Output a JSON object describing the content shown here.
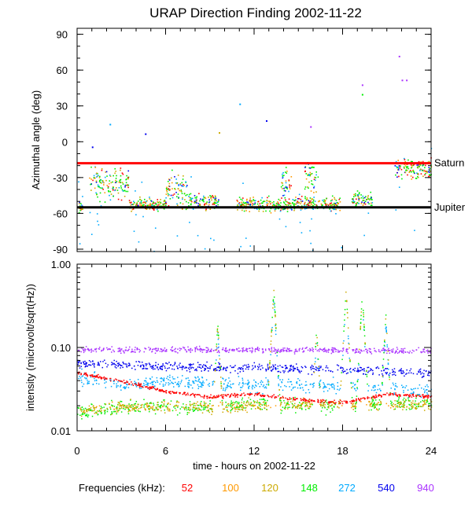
{
  "chart_data": {
    "type": "scatter",
    "title": "URAP Direction Finding  2002-11-22",
    "xlabel": "time - hours on 2002-11-22",
    "xlim": [
      0,
      24
    ],
    "x_ticks": [
      "0",
      "6",
      "12",
      "18",
      "24"
    ],
    "legend": {
      "label": "Frequencies (kHz):",
      "items": [
        {
          "name": "52",
          "color": "#ff0000"
        },
        {
          "name": "100",
          "color": "#ff9900"
        },
        {
          "name": "120",
          "color": "#ccaa00"
        },
        {
          "name": "148",
          "color": "#00ee00"
        },
        {
          "name": "272",
          "color": "#00aaff"
        },
        {
          "name": "540",
          "color": "#0000ee"
        },
        {
          "name": "940",
          "color": "#aa33ff"
        }
      ]
    },
    "panels": [
      {
        "id": "azimuth",
        "ylabel": "Azimuthal angle (deg)",
        "ylim": [
          -92,
          95
        ],
        "y_ticks": [
          "90",
          "60",
          "30",
          "0",
          "-30",
          "-60",
          "-90"
        ],
        "reference_lines": [
          {
            "label": "Saturn",
            "value": -18,
            "color": "#ff0000"
          },
          {
            "label": "Jupiter",
            "value": -55,
            "color": "#000000"
          }
        ],
        "activity_windows": [
          {
            "start": 0.0,
            "end": 0.4,
            "center": -55,
            "spread": 6
          },
          {
            "start": 0.8,
            "end": 3.5,
            "center": -35,
            "spread": 14
          },
          {
            "start": 3.5,
            "end": 6.0,
            "center": -52,
            "spread": 5
          },
          {
            "start": 6.0,
            "end": 7.5,
            "center": -40,
            "spread": 16
          },
          {
            "start": 7.5,
            "end": 9.6,
            "center": -50,
            "spread": 7
          },
          {
            "start": 10.8,
            "end": 17.8,
            "center": -52,
            "spread": 6
          },
          {
            "start": 13.8,
            "end": 14.5,
            "center": -35,
            "spread": 12
          },
          {
            "start": 15.4,
            "end": 16.3,
            "center": -30,
            "spread": 16
          },
          {
            "start": 18.6,
            "end": 20.0,
            "center": -48,
            "spread": 7
          },
          {
            "start": 21.5,
            "end": 24.0,
            "center": -22,
            "spread": 8
          }
        ]
      },
      {
        "id": "intensity",
        "ylabel": "intensity (microvolt/sqrt(Hz))",
        "yscale": "log",
        "ylim": [
          0.01,
          1.0
        ],
        "y_ticks": [
          "1.00",
          "0.10",
          "0.01"
        ],
        "series_baselines": [
          {
            "name": "940",
            "points": [
              [
                0,
                0.095
              ],
              [
                12,
                0.095
              ],
              [
                24,
                0.092
              ]
            ]
          },
          {
            "name": "540",
            "points": [
              [
                0,
                0.065
              ],
              [
                6,
                0.06
              ],
              [
                12,
                0.057
              ],
              [
                18,
                0.056
              ],
              [
                24,
                0.05
              ]
            ]
          },
          {
            "name": "272",
            "points": [
              [
                0,
                0.045
              ],
              [
                3,
                0.035
              ],
              [
                6,
                0.04
              ],
              [
                12,
                0.036
              ],
              [
                18,
                0.035
              ],
              [
                24,
                0.03
              ]
            ]
          },
          {
            "name": "148",
            "points": [
              [
                0,
                0.017
              ],
              [
                4,
                0.02
              ],
              [
                8,
                0.019
              ],
              [
                12,
                0.022
              ],
              [
                18,
                0.02
              ],
              [
                24,
                0.022
              ]
            ]
          },
          {
            "name": "120",
            "points": [
              [
                0,
                0.018
              ],
              [
                5,
                0.02
              ],
              [
                9,
                0.019
              ],
              [
                13,
                0.021
              ],
              [
                24,
                0.021
              ]
            ]
          },
          {
            "name": "100",
            "points": [
              [
                0,
                0.02
              ],
              [
                6,
                0.02
              ],
              [
                12,
                0.02
              ],
              [
                24,
                0.022
              ]
            ]
          },
          {
            "name": "52",
            "points": [
              [
                0,
                0.05
              ],
              [
                3,
                0.04
              ],
              [
                6,
                0.03
              ],
              [
                9,
                0.026
              ],
              [
                12,
                0.028
              ],
              [
                15,
                0.024
              ],
              [
                18,
                0.022
              ],
              [
                21,
                0.028
              ],
              [
                24,
                0.026
              ]
            ]
          }
        ],
        "bursts": [
          {
            "t": 9.5,
            "peak": 0.2
          },
          {
            "t": 13.3,
            "peak": 0.5
          },
          {
            "t": 16.2,
            "peak": 0.17
          },
          {
            "t": 18.2,
            "peak": 0.5
          },
          {
            "t": 19.3,
            "peak": 0.45
          },
          {
            "t": 20.9,
            "peak": 0.25
          }
        ]
      }
    ]
  }
}
